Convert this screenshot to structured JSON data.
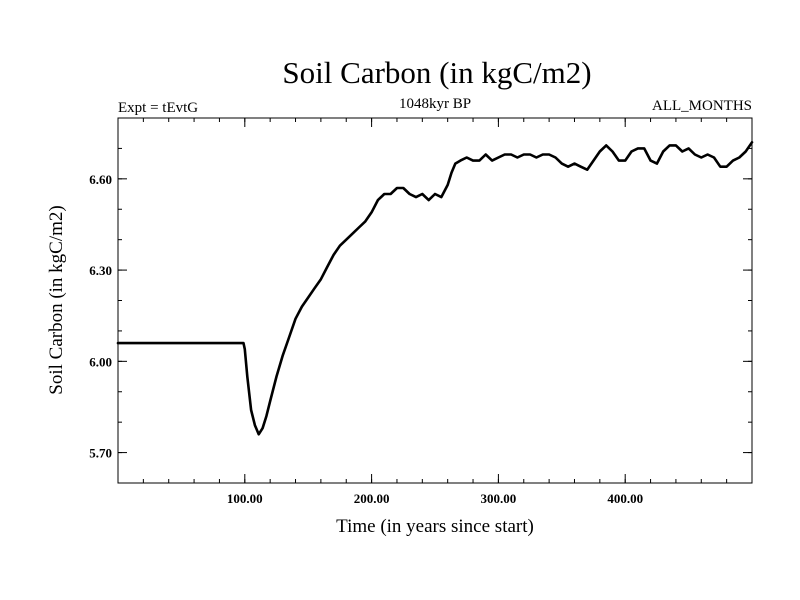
{
  "chart_data": {
    "type": "line",
    "title": "Soil Carbon (in kgC/m2)",
    "header_left": "Expt = tEvtG",
    "header_center": "1048kyr BP",
    "header_right": "ALL_MONTHS",
    "xlabel": "Time (in years since start)",
    "ylabel": "Soil Carbon (in kgC/m2)",
    "xlim": [
      0,
      500
    ],
    "ylim": [
      5.6,
      6.8
    ],
    "x_major_ticks": [
      {
        "value": 100,
        "label": "100.00"
      },
      {
        "value": 200,
        "label": "200.00"
      },
      {
        "value": 300,
        "label": "300.00"
      },
      {
        "value": 400,
        "label": "400.00"
      }
    ],
    "x_minor_step": 20,
    "y_major_ticks": [
      {
        "value": 5.7,
        "label": "5.70"
      },
      {
        "value": 6.0,
        "label": "6.00"
      },
      {
        "value": 6.3,
        "label": "6.30"
      },
      {
        "value": 6.6,
        "label": "6.60"
      }
    ],
    "y_minor_step": 0.1,
    "grid": false,
    "series": [
      {
        "name": "Soil Carbon",
        "color": "#000000",
        "x": [
          0,
          99,
          100,
          102,
          105,
          108,
          111,
          114,
          117,
          120,
          125,
          130,
          135,
          140,
          145,
          150,
          155,
          160,
          165,
          170,
          175,
          180,
          185,
          190,
          195,
          200,
          205,
          210,
          215,
          220,
          225,
          230,
          235,
          240,
          245,
          250,
          255,
          260,
          263,
          266,
          270,
          275,
          280,
          285,
          290,
          295,
          300,
          305,
          310,
          315,
          320,
          325,
          330,
          335,
          340,
          345,
          350,
          355,
          360,
          365,
          370,
          375,
          380,
          385,
          390,
          395,
          400,
          405,
          410,
          415,
          420,
          425,
          430,
          435,
          440,
          445,
          450,
          455,
          460,
          465,
          470,
          475,
          480,
          485,
          490,
          495,
          500
        ],
        "values": [
          6.06,
          6.06,
          6.04,
          5.95,
          5.84,
          5.79,
          5.76,
          5.78,
          5.82,
          5.87,
          5.95,
          6.02,
          6.08,
          6.14,
          6.18,
          6.21,
          6.24,
          6.27,
          6.31,
          6.35,
          6.38,
          6.4,
          6.42,
          6.44,
          6.46,
          6.49,
          6.53,
          6.55,
          6.55,
          6.57,
          6.57,
          6.55,
          6.54,
          6.55,
          6.53,
          6.55,
          6.54,
          6.58,
          6.62,
          6.65,
          6.66,
          6.67,
          6.66,
          6.66,
          6.68,
          6.66,
          6.67,
          6.68,
          6.68,
          6.67,
          6.68,
          6.68,
          6.67,
          6.68,
          6.68,
          6.67,
          6.65,
          6.64,
          6.65,
          6.64,
          6.63,
          6.66,
          6.69,
          6.71,
          6.69,
          6.66,
          6.66,
          6.69,
          6.7,
          6.7,
          6.66,
          6.65,
          6.69,
          6.71,
          6.71,
          6.69,
          6.7,
          6.68,
          6.67,
          6.68,
          6.67,
          6.64,
          6.64,
          6.66,
          6.67,
          6.69,
          6.72
        ]
      }
    ]
  }
}
